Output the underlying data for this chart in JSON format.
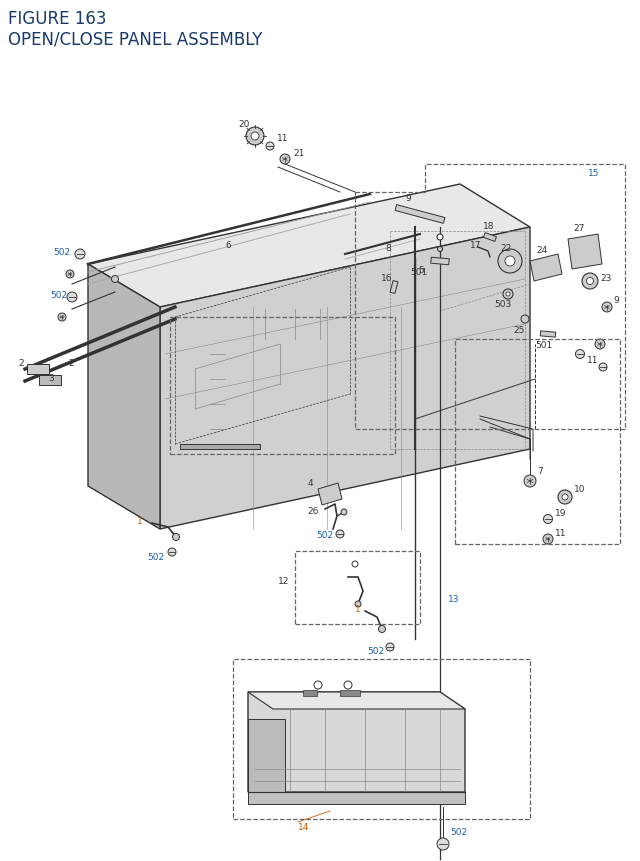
{
  "title_line1": "FIGURE 163",
  "title_line2": "OPEN/CLOSE PANEL ASSEMBLY",
  "title_color": "#1a3a6b",
  "title_fontsize": 12,
  "bg_color": "#ffffff",
  "orange": "#cc5500",
  "blue": "#1a5faa",
  "gray": "#333333",
  "lgray": "#888888",
  "dashed_color": "#666666"
}
